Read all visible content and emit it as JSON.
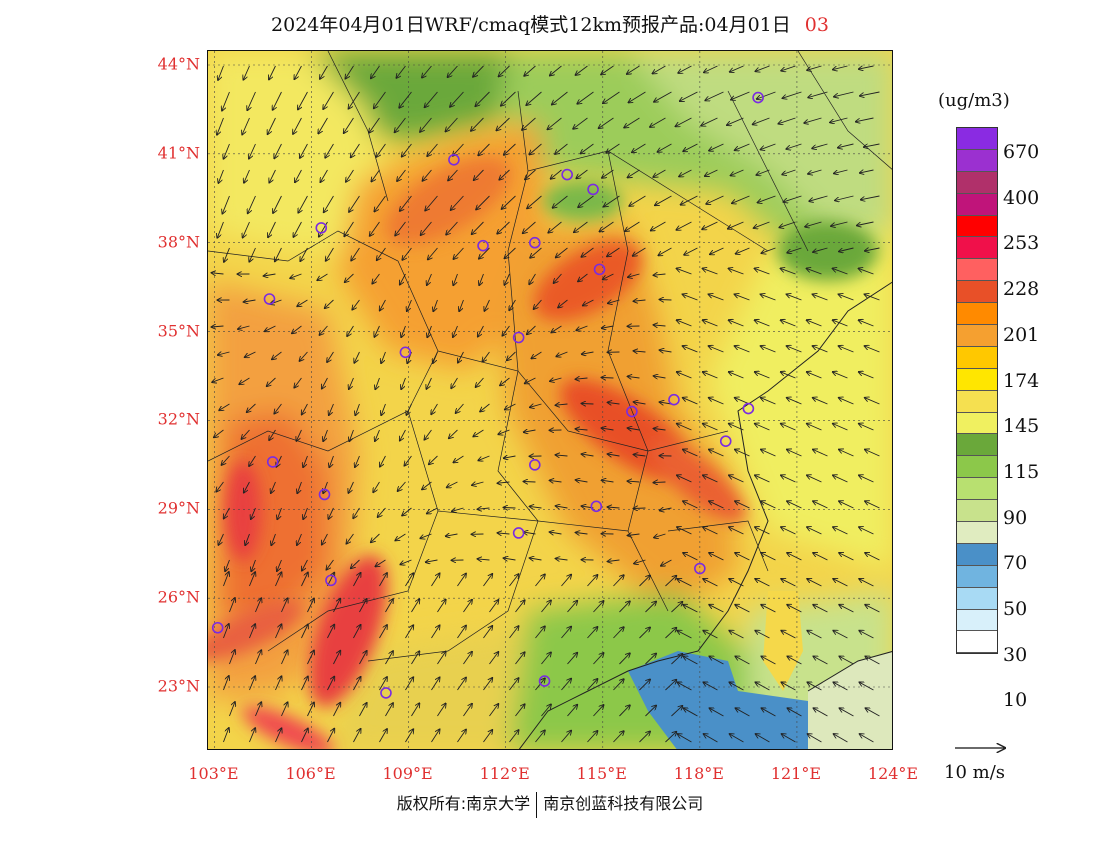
{
  "title": {
    "prefix": "2024年04月01日WRF/cmaq模式12km预报产品:04月01日",
    "hour": "03"
  },
  "lat_labels": [
    "44°N",
    "41°N",
    "38°N",
    "35°N",
    "32°N",
    "29°N",
    "26°N",
    "23°N"
  ],
  "lon_labels": [
    "103°E",
    "106°E",
    "109°E",
    "112°E",
    "115°E",
    "118°E",
    "121°E",
    "124°E"
  ],
  "colorbar": {
    "unit": "(ug/m3)",
    "colors": [
      "#8a2be2",
      "#9b30d0",
      "#b0306a",
      "#c0147a",
      "#ff0000",
      "#f0104a",
      "#ff6060",
      "#e85028",
      "#ff8a00",
      "#f5a030",
      "#ffc800",
      "#ffe600",
      "#f5e050",
      "#f0f060",
      "#6aa83a",
      "#8cc84a",
      "#b8e070",
      "#c8e28c",
      "#e0ecc0",
      "#4a90c8",
      "#70b4e0",
      "#a8daf4",
      "#d8f0fa",
      "#ffffff"
    ],
    "labels": [
      "670",
      "400",
      "253",
      "228",
      "201",
      "174",
      "145",
      "115",
      "90",
      "70",
      "50",
      "30",
      "10"
    ]
  },
  "wind_scale": "10 m/s",
  "footer": {
    "left": "版权所有:南京大学",
    "right": "南京创蓝科技有限公司"
  },
  "stations": [
    [
      103.1,
      25.0
    ],
    [
      104.7,
      36.1
    ],
    [
      104.8,
      30.6
    ],
    [
      106.4,
      29.5
    ],
    [
      106.6,
      26.6
    ],
    [
      106.3,
      38.5
    ],
    [
      108.9,
      34.3
    ],
    [
      108.3,
      22.8
    ],
    [
      110.4,
      40.8
    ],
    [
      111.3,
      37.9
    ],
    [
      112.4,
      34.8
    ],
    [
      112.9,
      38.0
    ],
    [
      112.9,
      30.5
    ],
    [
      112.4,
      28.2
    ],
    [
      113.9,
      40.3
    ],
    [
      114.7,
      39.8
    ],
    [
      114.9,
      37.1
    ],
    [
      115.9,
      32.3
    ],
    [
      114.8,
      29.1
    ],
    [
      113.2,
      23.2
    ],
    [
      117.2,
      32.7
    ],
    [
      118.8,
      31.3
    ],
    [
      119.5,
      32.4
    ],
    [
      118.0,
      27.0
    ],
    [
      119.8,
      42.9
    ]
  ]
}
